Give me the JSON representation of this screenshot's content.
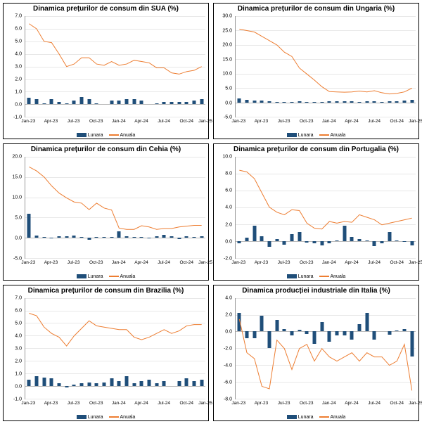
{
  "xticks": [
    "Jan-23",
    "Apr-23",
    "Jul-23",
    "Oct-23",
    "Jan-24",
    "Apr-24",
    "Jul-24",
    "Oct-24",
    "Jan-25"
  ],
  "legend": {
    "bar": "Lunara",
    "line": "Anuala"
  },
  "colors": {
    "bar": "#1f4e79",
    "line": "#ed7d31",
    "grid": "#e8e8e8",
    "text": "#000"
  },
  "charts": [
    {
      "title": "Dinamica prețurilor de consum din SUA (%)",
      "ymin": -1,
      "ymax": 7,
      "ystep": 1,
      "bars": [
        0.5,
        0.4,
        0.1,
        0.4,
        0.2,
        0.1,
        0.3,
        0.6,
        0.4,
        0.1,
        0,
        0.3,
        0.3,
        0.4,
        0.4,
        0.3,
        0,
        0.1,
        0.2,
        0.2,
        0.2,
        0.2,
        0.3,
        0.4
      ],
      "line": [
        6.4,
        6.0,
        5.0,
        4.9,
        4.0,
        3.0,
        3.2,
        3.7,
        3.7,
        3.2,
        3.1,
        3.4,
        3.1,
        3.2,
        3.5,
        3.4,
        3.3,
        2.9,
        2.9,
        2.5,
        2.4,
        2.6,
        2.7,
        3.0
      ]
    },
    {
      "title": "Dinamica prețurilor de consum din Ungaria (%)",
      "ymin": -5,
      "ymax": 30,
      "ystep": 5,
      "bars": [
        1.5,
        1.0,
        0.8,
        0.7,
        0.4,
        0.3,
        0.3,
        0.2,
        0.4,
        0.3,
        0.2,
        0.3,
        0.4,
        0.5,
        0.4,
        0.5,
        0.3,
        0.4,
        0.4,
        0.3,
        0.4,
        0.5,
        0.6,
        1.0
      ],
      "line": [
        25.5,
        25.0,
        24.5,
        23.0,
        21.5,
        20.0,
        17.5,
        16.0,
        12.0,
        9.9,
        7.8,
        5.5,
        3.8,
        3.7,
        3.6,
        3.7,
        4.0,
        3.7,
        4.1,
        3.4,
        3.0,
        3.2,
        3.7,
        5.0
      ]
    },
    {
      "title": "Dinamica prețurilor de consum din Cehia (%)",
      "ymin": -5,
      "ymax": 20,
      "ystep": 5,
      "bars": [
        6.0,
        0.5,
        0.2,
        -0.1,
        0.3,
        0.3,
        0.5,
        0.2,
        -0.5,
        0.1,
        0.1,
        0.2,
        1.5,
        0.3,
        0.1,
        0.2,
        -0.1,
        0.3,
        0.7,
        0.3,
        -0.4,
        0.3,
        0.1,
        0.3
      ],
      "line": [
        17.5,
        16.5,
        15.0,
        12.8,
        11.0,
        9.8,
        8.8,
        8.5,
        6.9,
        8.5,
        7.3,
        6.8,
        2.3,
        2.0,
        2.0,
        2.9,
        2.6,
        2.0,
        2.2,
        2.2,
        2.6,
        2.8,
        3.0,
        3.0
      ]
    },
    {
      "title": "Dinamica prețurilor de consum din Portugalia (%)",
      "ymin": -2,
      "ymax": 10,
      "ystep": 2,
      "bars": [
        -0.3,
        0.4,
        1.8,
        0.6,
        -0.7,
        0.2,
        -0.4,
        0.8,
        1.1,
        -0.2,
        -0.3,
        -0.5,
        -0.3,
        0.1,
        1.8,
        0.5,
        0.2,
        0.1,
        -0.6,
        -0.3,
        1.1,
        0.1,
        -0.1,
        -0.5
      ],
      "line": [
        8.4,
        8.2,
        7.4,
        5.7,
        4.0,
        3.4,
        3.1,
        3.7,
        3.6,
        2.1,
        1.5,
        1.4,
        2.3,
        2.1,
        2.3,
        2.2,
        3.1,
        2.8,
        2.5,
        1.9,
        2.1,
        2.3,
        2.5,
        2.7
      ]
    },
    {
      "title": "Dinamica prețurilor de consum din Brazilia (%)",
      "ymin": -1,
      "ymax": 7,
      "ystep": 1,
      "bars": [
        0.5,
        0.8,
        0.7,
        0.6,
        0.2,
        -0.1,
        0.1,
        0.2,
        0.3,
        0.2,
        0.3,
        0.6,
        0.4,
        0.8,
        0.2,
        0.4,
        0.5,
        0.2,
        0.4,
        0.0,
        0.4,
        0.6,
        0.4,
        0.5
      ],
      "line": [
        5.8,
        5.6,
        4.7,
        4.2,
        3.9,
        3.2,
        4.0,
        4.6,
        5.2,
        4.8,
        4.7,
        4.6,
        4.5,
        4.5,
        3.9,
        3.7,
        3.9,
        4.2,
        4.5,
        4.2,
        4.4,
        4.8,
        4.9,
        4.9
      ]
    },
    {
      "title": "Dinamica producției industriale din Italia (%)",
      "ymin": -8,
      "ymax": 4,
      "ystep": 2,
      "bars": [
        2.2,
        -0.8,
        -0.8,
        1.9,
        -2.0,
        1.4,
        0.3,
        -0.5,
        0.2,
        -0.3,
        -1.5,
        1.1,
        -1.2,
        -0.5,
        -0.5,
        -1.0,
        0.9,
        2.2,
        -1.0,
        0.0,
        -0.4,
        0.1,
        0.3,
        -3.0
      ],
      "line": [
        1.5,
        -2.5,
        -3.2,
        -6.5,
        -6.8,
        -1.0,
        -2.0,
        -4.5,
        -2.0,
        -1.5,
        -3.5,
        -2.0,
        -3.0,
        -3.5,
        -3.0,
        -2.5,
        -3.5,
        -2.5,
        -3.0,
        -3.0,
        -4.0,
        -3.5,
        -1.5,
        -7.0
      ]
    }
  ]
}
